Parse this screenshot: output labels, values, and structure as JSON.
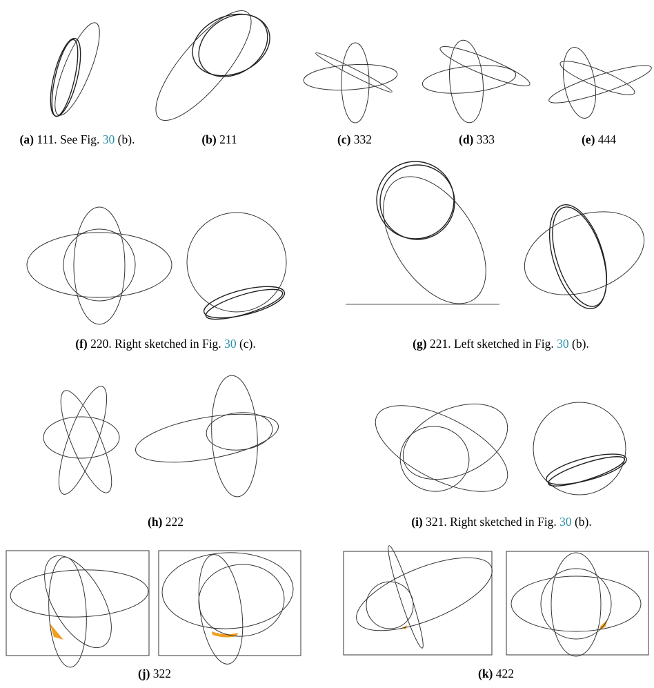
{
  "figure": {
    "captions": [
      {
        "id": "a",
        "letter": "(a)",
        "text": "111. See Fig. ",
        "ref": "30",
        "after": " (b)."
      },
      {
        "id": "b",
        "letter": "(b)",
        "text": "211",
        "ref": "",
        "after": ""
      },
      {
        "id": "c",
        "letter": "(c)",
        "text": "332",
        "ref": "",
        "after": ""
      },
      {
        "id": "d",
        "letter": "(d)",
        "text": "333",
        "ref": "",
        "after": ""
      },
      {
        "id": "e",
        "letter": "(e)",
        "text": "444",
        "ref": "",
        "after": ""
      },
      {
        "id": "f",
        "letter": "(f)",
        "text": "220. Right sketched in Fig. ",
        "ref": "30",
        "after": " (c)."
      },
      {
        "id": "g",
        "letter": "(g)",
        "text": "221. Left sketched in Fig. ",
        "ref": "30",
        "after": " (b)."
      },
      {
        "id": "h",
        "letter": "(h)",
        "text": "222",
        "ref": "",
        "after": ""
      },
      {
        "id": "i",
        "letter": "(i)",
        "text": "321. Right sketched in Fig. ",
        "ref": "30",
        "after": " (b)."
      },
      {
        "id": "j",
        "letter": "(j)",
        "text": "322",
        "ref": "",
        "after": ""
      },
      {
        "id": "k",
        "letter": "(k)",
        "text": "422",
        "ref": "",
        "after": ""
      }
    ],
    "colors": {
      "link": "#2a8fa8",
      "highlight": "#f0a020",
      "stroke": "#333333"
    }
  }
}
